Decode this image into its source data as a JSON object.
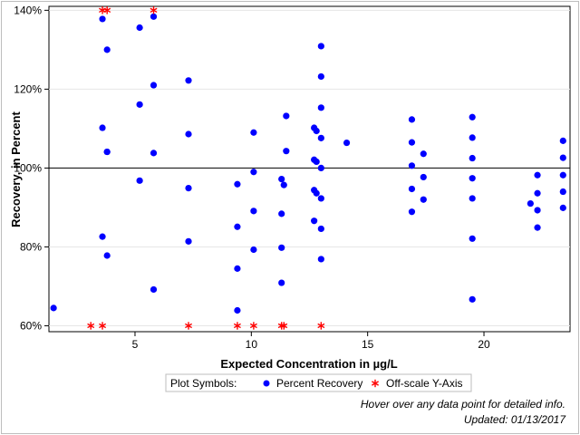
{
  "chart_data": {
    "type": "scatter",
    "xlabel": "Expected Concentration in µg/L",
    "ylabel": "Recovery, in Percent",
    "xlim": [
      1.3,
      23.7
    ],
    "ylim": [
      58.5,
      141
    ],
    "xticks": [
      5,
      10,
      15,
      20
    ],
    "yticks": [
      60,
      80,
      100,
      120,
      140
    ],
    "ytick_labels": [
      "60%",
      "80%",
      "100%",
      "120%",
      "140%"
    ],
    "reference_line_y": 100,
    "grid": "horizontal",
    "colors": {
      "series": "#0000ff",
      "offscale": "#ff0000",
      "axis": "#000000",
      "grid": "#e6e6e6"
    },
    "series": [
      {
        "name": "Percent Recovery",
        "marker": "circle",
        "points": [
          [
            1.5,
            64.5
          ],
          [
            3.6,
            137.8
          ],
          [
            3.6,
            110.2
          ],
          [
            3.6,
            82.6
          ],
          [
            3.8,
            104.1
          ],
          [
            3.8,
            104.1
          ],
          [
            3.8,
            77.8
          ],
          [
            3.8,
            130
          ],
          [
            5.2,
            135.6
          ],
          [
            5.2,
            116.1
          ],
          [
            5.2,
            96.8
          ],
          [
            5.8,
            138.4
          ],
          [
            5.8,
            121
          ],
          [
            5.8,
            103.8
          ],
          [
            5.8,
            69.2
          ],
          [
            7.3,
            122.2
          ],
          [
            7.3,
            108.6
          ],
          [
            7.3,
            94.9
          ],
          [
            7.3,
            81.4
          ],
          [
            9.4,
            95.9
          ],
          [
            9.4,
            85.1
          ],
          [
            9.4,
            74.5
          ],
          [
            9.4,
            63.9
          ],
          [
            10.1,
            109
          ],
          [
            10.1,
            99
          ],
          [
            10.1,
            89.1
          ],
          [
            10.1,
            79.3
          ],
          [
            11.3,
            97.2
          ],
          [
            11.3,
            88.4
          ],
          [
            11.3,
            79.8
          ],
          [
            11.3,
            70.9
          ],
          [
            11.4,
            95.7
          ],
          [
            11.5,
            113.2
          ],
          [
            11.5,
            104.3
          ],
          [
            12.7,
            110.2
          ],
          [
            12.7,
            102.1
          ],
          [
            12.7,
            94.4
          ],
          [
            12.7,
            86.6
          ],
          [
            12.8,
            109.4
          ],
          [
            12.8,
            101.6
          ],
          [
            12.8,
            93.6
          ],
          [
            13,
            130.9
          ],
          [
            13,
            123.2
          ],
          [
            13,
            115.3
          ],
          [
            13,
            107.6
          ],
          [
            13,
            100
          ],
          [
            13,
            92.3
          ],
          [
            13,
            84.6
          ],
          [
            13,
            76.9
          ],
          [
            14.1,
            106.4
          ],
          [
            16.9,
            112.3
          ],
          [
            16.9,
            106.5
          ],
          [
            16.9,
            100.6
          ],
          [
            16.9,
            94.7
          ],
          [
            16.9,
            88.9
          ],
          [
            17.4,
            103.6
          ],
          [
            17.4,
            97.7
          ],
          [
            17.4,
            92
          ],
          [
            19.5,
            112.9
          ],
          [
            19.5,
            107.7
          ],
          [
            19.5,
            102.5
          ],
          [
            19.5,
            97.4
          ],
          [
            19.5,
            92.3
          ],
          [
            19.5,
            82.1
          ],
          [
            19.5,
            66.7
          ],
          [
            22,
            91
          ],
          [
            22.3,
            98.2
          ],
          [
            22.3,
            93.6
          ],
          [
            22.3,
            89.3
          ],
          [
            22.3,
            84.9
          ],
          [
            23.4,
            106.9
          ],
          [
            23.4,
            102.6
          ],
          [
            23.4,
            98.2
          ],
          [
            23.4,
            94
          ],
          [
            23.4,
            89.9
          ]
        ]
      },
      {
        "name": "Off-scale Y-Axis",
        "marker": "asterisk",
        "points": [
          [
            3.6,
            140
          ],
          [
            3.8,
            140
          ],
          [
            5.8,
            140
          ],
          [
            3.1,
            60
          ],
          [
            3.6,
            60
          ],
          [
            7.3,
            60
          ],
          [
            9.4,
            60
          ],
          [
            10.1,
            60
          ],
          [
            11.3,
            60
          ],
          [
            11.4,
            60
          ],
          [
            13,
            60
          ]
        ]
      }
    ],
    "legend": {
      "title": "Plot Symbols:",
      "position": "bottom-center"
    }
  },
  "notes": {
    "hover": "Hover over any data point for detailed info.",
    "updated": "Updated: 01/13/2017"
  }
}
